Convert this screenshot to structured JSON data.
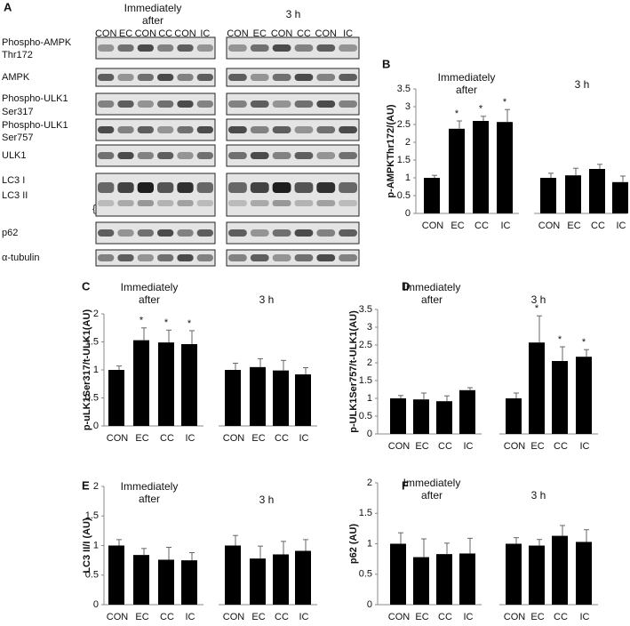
{
  "blot": {
    "panel": "A",
    "groups": [
      {
        "title": "Immediately after",
        "lanes": [
          "CON",
          "EC",
          "CON",
          "CC",
          "CON",
          "IC"
        ]
      },
      {
        "title": "3 h",
        "lanes": [
          "CON",
          "EC",
          "CON",
          "CC",
          "CON",
          "IC"
        ]
      }
    ],
    "rows": [
      [
        "Phospho-AMPK",
        "Thr172"
      ],
      [
        "AMPK"
      ],
      [
        "Phospho-ULK1",
        "Ser317"
      ],
      [
        "Phospho-ULK1",
        "Ser757"
      ],
      [
        "ULK1"
      ],
      [
        "LC3 I",
        "LC3 II"
      ],
      [
        "p62"
      ],
      [
        "α-tubulin"
      ]
    ],
    "bracket": "{"
  },
  "chart_data": [
    {
      "type": "bar",
      "panel": "B",
      "ylabel": "p-AMPKThr172/(AU)",
      "ylim": [
        0,
        3.5
      ],
      "yticks": [
        0,
        0.5,
        1,
        1.5,
        2,
        2.5,
        3,
        3.5
      ],
      "color": "#000000",
      "groups": [
        {
          "title": "Immediately after",
          "categories": [
            "CON",
            "EC",
            "CC",
            "IC"
          ],
          "values": [
            1.0,
            2.38,
            2.6,
            2.57
          ],
          "errors": [
            0.07,
            0.22,
            0.13,
            0.35
          ],
          "markers": [
            null,
            "*",
            "*",
            "*"
          ]
        },
        {
          "title": "3 h",
          "categories": [
            "CON",
            "EC",
            "CC",
            "IC"
          ],
          "values": [
            1.0,
            1.07,
            1.25,
            0.88
          ],
          "errors": [
            0.13,
            0.2,
            0.13,
            0.17
          ],
          "markers": [
            null,
            null,
            null,
            null
          ]
        }
      ]
    },
    {
      "type": "bar",
      "panel": "C",
      "ylabel": "p-uLK1Ser317/t-ULK1(AU)",
      "ylim": [
        0,
        2
      ],
      "yticks": [
        0,
        0.5,
        1,
        1.5,
        2
      ],
      "color": "#000000",
      "groups": [
        {
          "title": "Immediately after",
          "categories": [
            "CON",
            "EC",
            "CC",
            "IC"
          ],
          "values": [
            1.0,
            1.53,
            1.49,
            1.46
          ],
          "errors": [
            0.07,
            0.22,
            0.22,
            0.24
          ],
          "markers": [
            null,
            "*",
            "*",
            "*"
          ]
        },
        {
          "title": "3 h",
          "categories": [
            "CON",
            "EC",
            "CC",
            "IC"
          ],
          "values": [
            1.0,
            1.05,
            0.99,
            0.92
          ],
          "errors": [
            0.12,
            0.15,
            0.18,
            0.12
          ],
          "markers": [
            null,
            null,
            null,
            null
          ]
        }
      ]
    },
    {
      "type": "bar",
      "panel": "D",
      "ylabel": "p-ULK1Ser757/t-ULK1(AU)",
      "ylim": [
        0,
        3.5
      ],
      "yticks": [
        0,
        0.5,
        1,
        1.5,
        2,
        2.5,
        3,
        3.5
      ],
      "color": "#000000",
      "groups": [
        {
          "title": "Immediately after",
          "categories": [
            "CON",
            "EC",
            "CC",
            "IC"
          ],
          "values": [
            1.0,
            0.97,
            0.92,
            1.23
          ],
          "errors": [
            0.08,
            0.18,
            0.15,
            0.07
          ],
          "markers": [
            null,
            null,
            null,
            null
          ]
        },
        {
          "title": "3 h",
          "categories": [
            "CON",
            "EC",
            "CC",
            "IC"
          ],
          "values": [
            1.0,
            2.57,
            2.05,
            2.17
          ],
          "errors": [
            0.15,
            0.75,
            0.4,
            0.2
          ],
          "markers": [
            null,
            "*",
            "*",
            "*"
          ]
        }
      ]
    },
    {
      "type": "bar",
      "panel": "E",
      "ylabel": "LC3 II/I (AU)",
      "ylim": [
        0,
        2
      ],
      "yticks": [
        0,
        0.5,
        1,
        1.5,
        2
      ],
      "color": "#000000",
      "groups": [
        {
          "title": "Immediately after",
          "categories": [
            "CON",
            "EC",
            "CC",
            "IC"
          ],
          "values": [
            1.0,
            0.84,
            0.76,
            0.75
          ],
          "errors": [
            0.1,
            0.11,
            0.21,
            0.13
          ],
          "markers": [
            null,
            null,
            null,
            null
          ]
        },
        {
          "title": "3 h",
          "categories": [
            "CON",
            "EC",
            "CC",
            "IC"
          ],
          "values": [
            1.0,
            0.78,
            0.85,
            0.91
          ],
          "errors": [
            0.17,
            0.21,
            0.22,
            0.19
          ],
          "markers": [
            null,
            null,
            null,
            null
          ]
        }
      ]
    },
    {
      "type": "bar",
      "panel": "F",
      "ylabel": "p62 (AU)",
      "ylim": [
        0,
        2
      ],
      "yticks": [
        0,
        0.5,
        1,
        1.5,
        2
      ],
      "color": "#000000",
      "groups": [
        {
          "title": "Immediately after",
          "categories": [
            "CON",
            "EC",
            "CC",
            "IC"
          ],
          "values": [
            1.0,
            0.78,
            0.83,
            0.84
          ],
          "errors": [
            0.18,
            0.3,
            0.18,
            0.25
          ],
          "markers": [
            null,
            null,
            null,
            null
          ]
        },
        {
          "title": "3 h",
          "categories": [
            "CON",
            "EC",
            "CC",
            "IC"
          ],
          "values": [
            1.0,
            0.97,
            1.13,
            1.03
          ],
          "errors": [
            0.1,
            0.1,
            0.17,
            0.2
          ],
          "markers": [
            null,
            null,
            null,
            null
          ]
        }
      ]
    }
  ]
}
